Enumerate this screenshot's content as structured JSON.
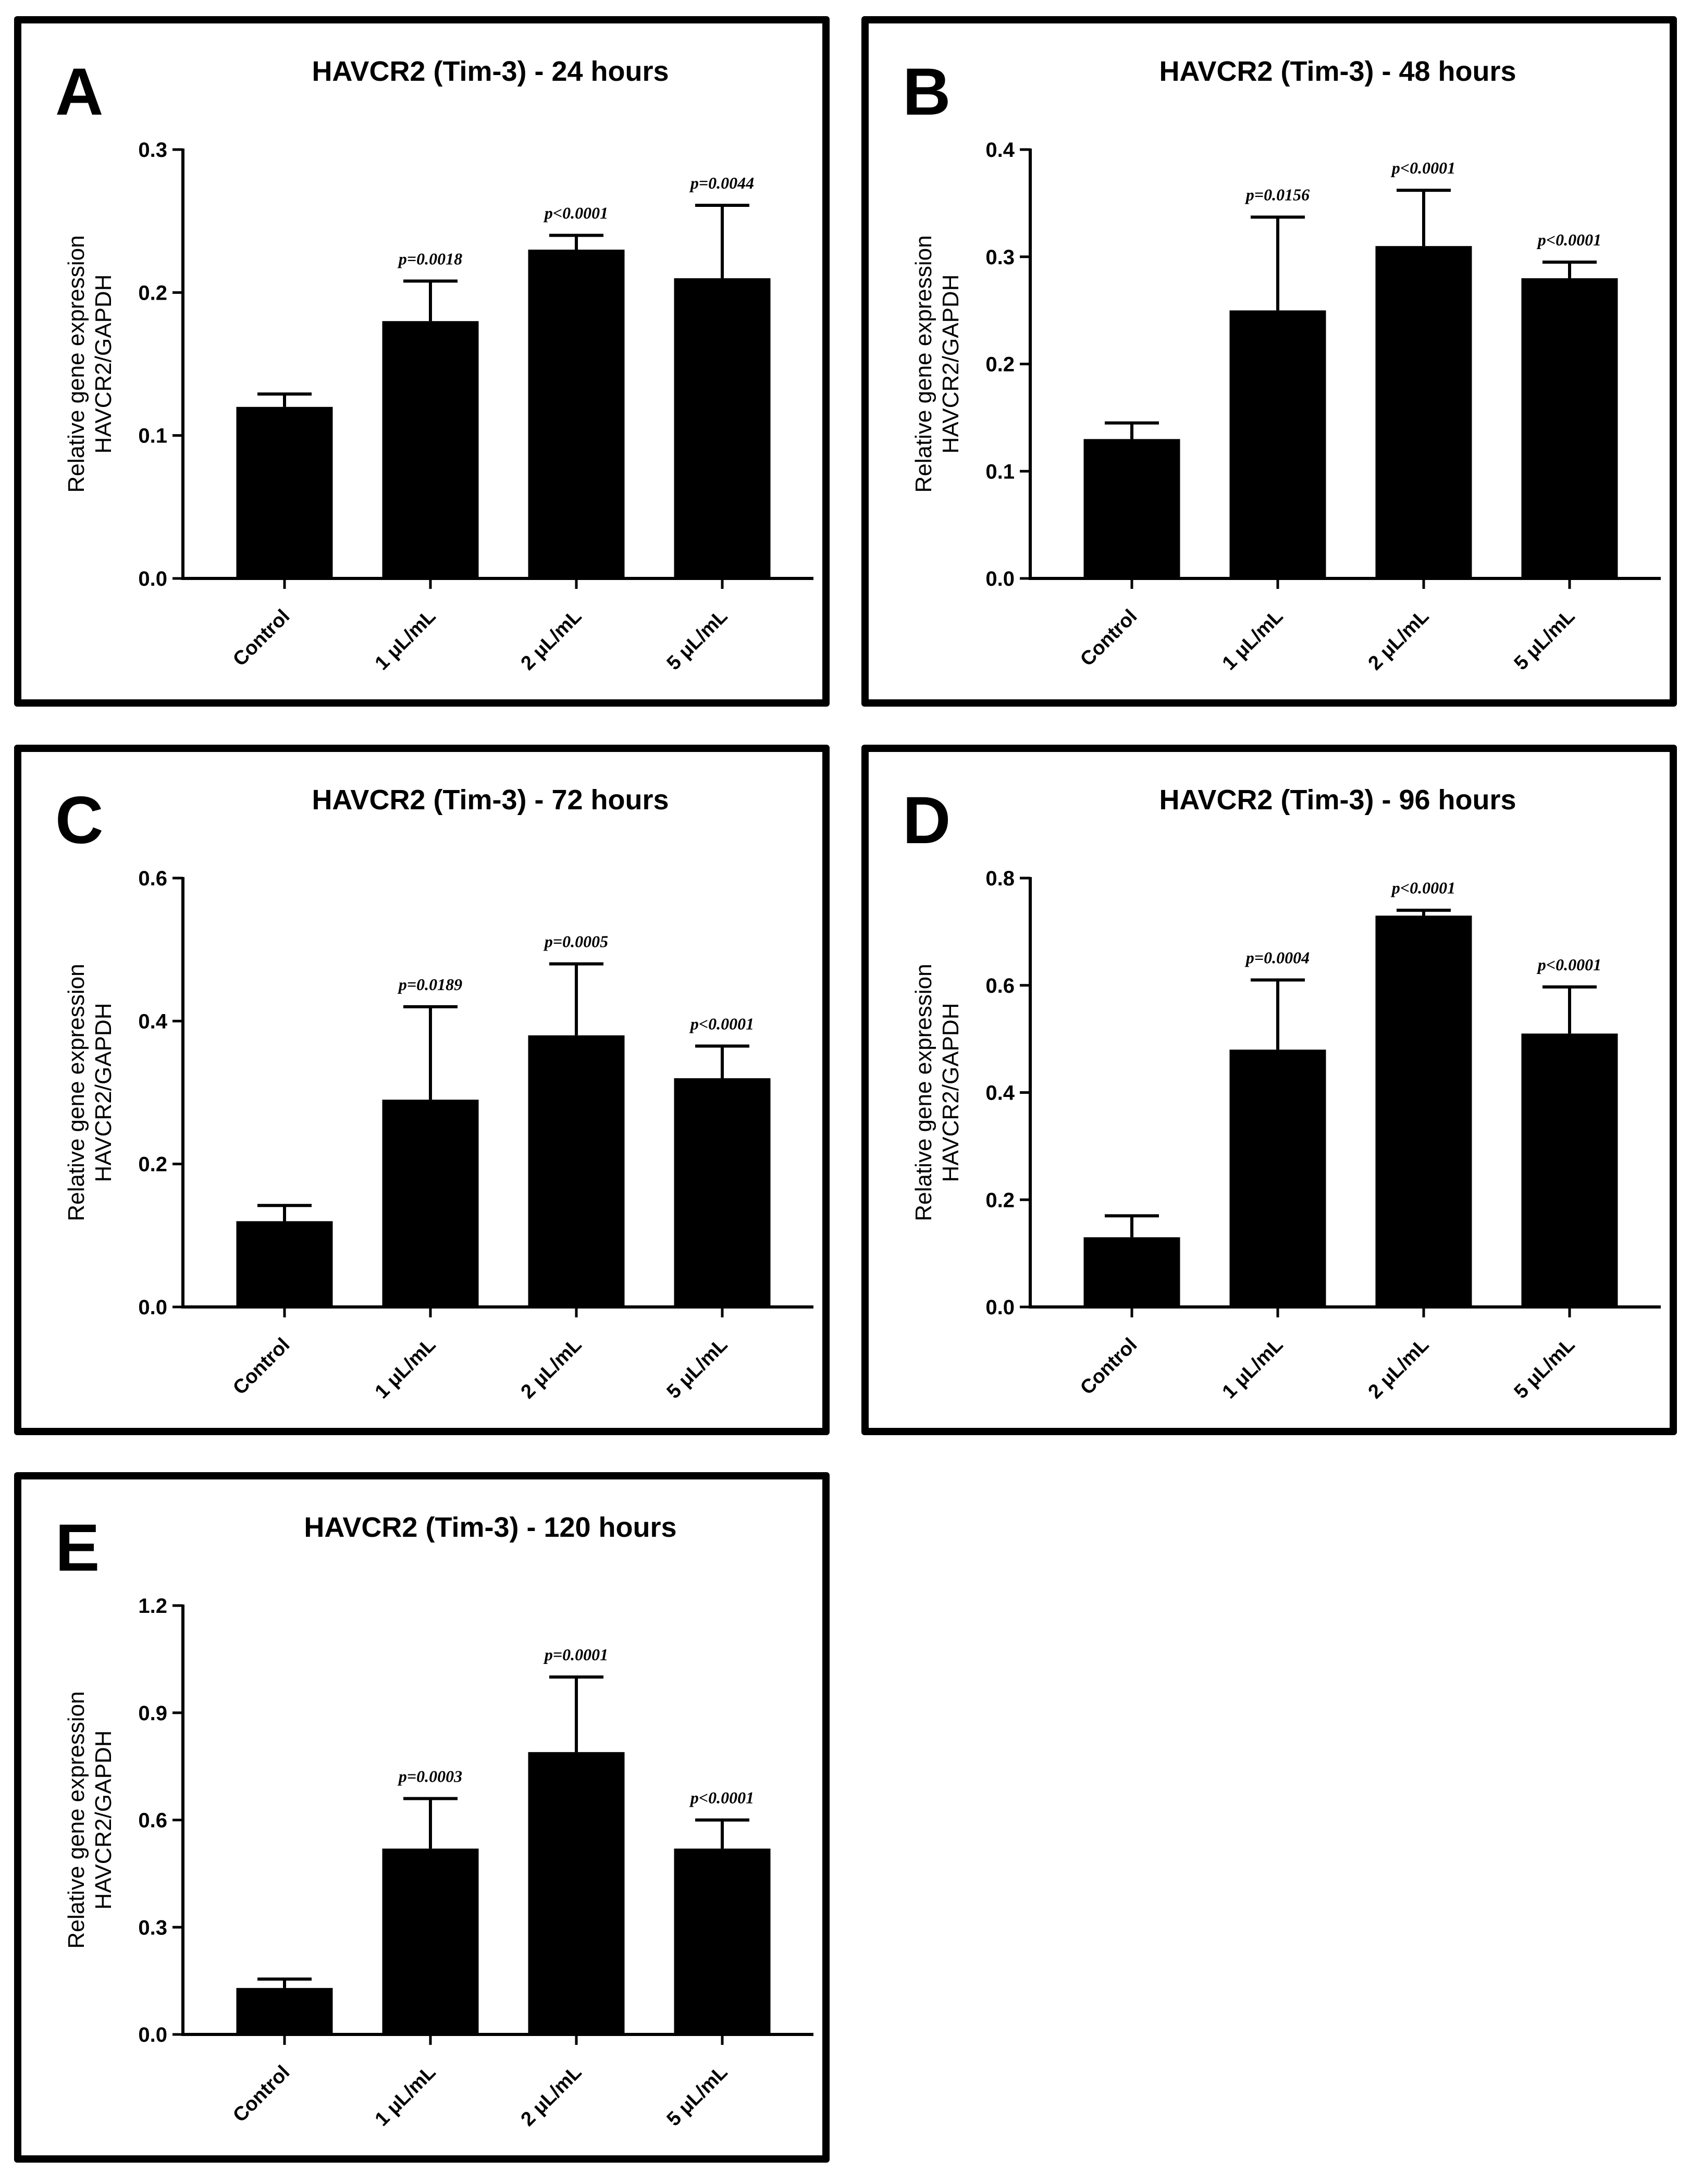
{
  "figure": {
    "background": "#ffffff",
    "bar_color": "#000000"
  },
  "chart_data": [
    {
      "panel": "A",
      "type": "bar",
      "title": "HAVCR2 (Tim-3) - 24 hours",
      "ylabel_lines": [
        "Relative gene expression",
        "HAVCR2/GAPDH"
      ],
      "categories": [
        "Control",
        "1 μL/mL",
        "2 μL/mL",
        "5 μL/mL"
      ],
      "values": [
        0.12,
        0.18,
        0.23,
        0.21
      ],
      "errors": [
        0.009,
        0.028,
        0.01,
        0.051
      ],
      "pvalues": [
        "",
        "p=0.0018",
        "p<0.0001",
        "p=0.0044"
      ],
      "ylim": [
        0,
        0.3
      ],
      "yticks": [
        0.0,
        0.1,
        0.2,
        0.3
      ],
      "ytick_labels": [
        "0.0",
        "0.1",
        "0.2",
        "0.3"
      ]
    },
    {
      "panel": "B",
      "type": "bar",
      "title": "HAVCR2 (Tim-3) - 48 hours",
      "ylabel_lines": [
        "Relative gene expression",
        "HAVCR2/GAPDH"
      ],
      "categories": [
        "Control",
        "1 μL/mL",
        "2 μL/mL",
        "5 μL/mL"
      ],
      "values": [
        0.13,
        0.25,
        0.31,
        0.28
      ],
      "errors": [
        0.015,
        0.087,
        0.052,
        0.015
      ],
      "pvalues": [
        "",
        "p=0.0156",
        "p<0.0001",
        "p<0.0001"
      ],
      "ylim": [
        0,
        0.4
      ],
      "yticks": [
        0.0,
        0.1,
        0.2,
        0.3,
        0.4
      ],
      "ytick_labels": [
        "0.0",
        "0.1",
        "0.2",
        "0.3",
        "0.4"
      ]
    },
    {
      "panel": "C",
      "type": "bar",
      "title": "HAVCR2 (Tim-3) - 72 hours",
      "ylabel_lines": [
        "Relative gene expression",
        "HAVCR2/GAPDH"
      ],
      "categories": [
        "Control",
        "1 μL/mL",
        "2 μL/mL",
        "5 μL/mL"
      ],
      "values": [
        0.12,
        0.29,
        0.38,
        0.32
      ],
      "errors": [
        0.022,
        0.13,
        0.1,
        0.045
      ],
      "pvalues": [
        "",
        "p=0.0189",
        "p=0.0005",
        "p<0.0001"
      ],
      "ylim": [
        0,
        0.6
      ],
      "yticks": [
        0.0,
        0.2,
        0.4,
        0.6
      ],
      "ytick_labels": [
        "0.0",
        "0.2",
        "0.4",
        "0.6"
      ]
    },
    {
      "panel": "D",
      "type": "bar",
      "title": "HAVCR2 (Tim-3) - 96 hours",
      "ylabel_lines": [
        "Relative gene expression",
        "HAVCR2/GAPDH"
      ],
      "categories": [
        "Control",
        "1 μL/mL",
        "2 μL/mL",
        "5 μL/mL"
      ],
      "values": [
        0.13,
        0.48,
        0.73,
        0.51
      ],
      "errors": [
        0.04,
        0.13,
        0.01,
        0.087
      ],
      "pvalues": [
        "",
        "p=0.0004",
        "p<0.0001",
        "p<0.0001"
      ],
      "ylim": [
        0,
        0.8
      ],
      "yticks": [
        0.0,
        0.2,
        0.4,
        0.6,
        0.8
      ],
      "ytick_labels": [
        "0.0",
        "0.2",
        "0.4",
        "0.6",
        "0.8"
      ]
    },
    {
      "panel": "E",
      "type": "bar",
      "title": "HAVCR2 (Tim-3) - 120 hours",
      "ylabel_lines": [
        "Relative gene expression",
        "HAVCR2/GAPDH"
      ],
      "categories": [
        "Control",
        "1 μL/mL",
        "2 μL/mL",
        "5 μL/mL"
      ],
      "values": [
        0.13,
        0.52,
        0.79,
        0.52
      ],
      "errors": [
        0.025,
        0.14,
        0.21,
        0.08
      ],
      "pvalues": [
        "",
        "p=0.0003",
        "p=0.0001",
        "p<0.0001"
      ],
      "ylim": [
        0,
        1.2
      ],
      "yticks": [
        0.0,
        0.3,
        0.6,
        0.9,
        1.2
      ],
      "ytick_labels": [
        "0.0",
        "0.3",
        "0.6",
        "0.9",
        "1.2"
      ]
    }
  ]
}
